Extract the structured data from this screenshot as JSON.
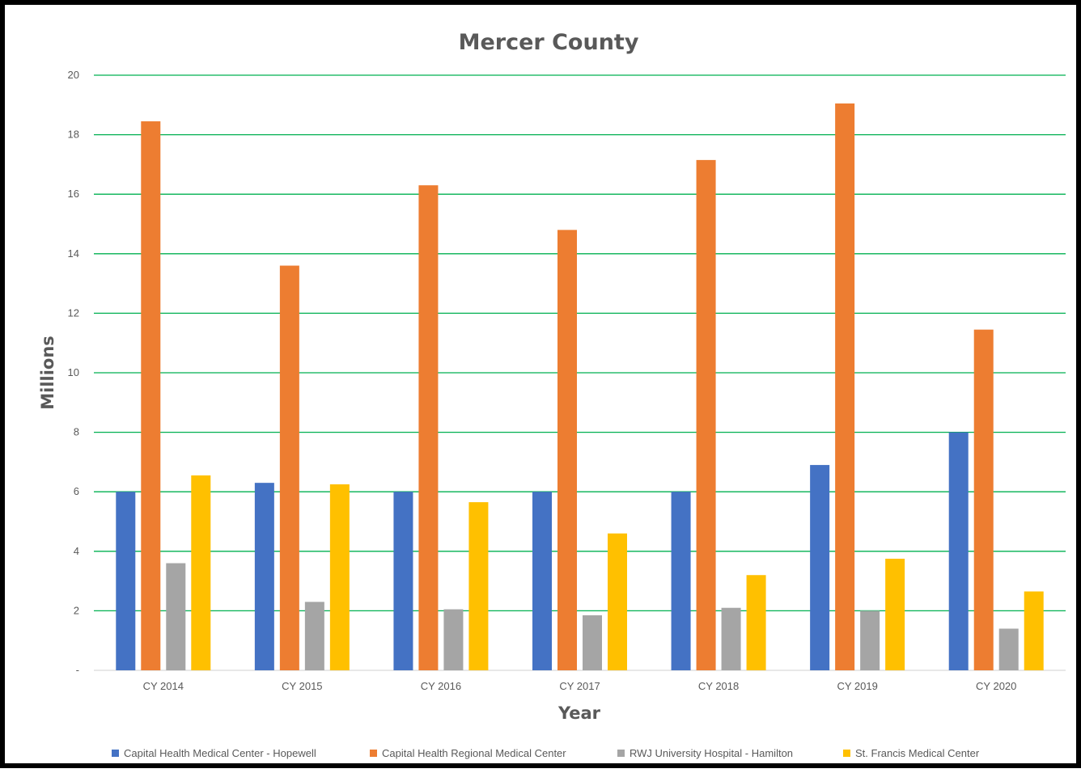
{
  "chart_data": {
    "type": "bar",
    "title": "Mercer County",
    "xlabel": "Year",
    "ylabel": "Millions",
    "ylim": [
      0,
      20
    ],
    "yticks": [
      0,
      2,
      4,
      6,
      8,
      10,
      12,
      14,
      16,
      18,
      20
    ],
    "ytick_labels": [
      "-",
      "2",
      "4",
      "6",
      "8",
      "10",
      "12",
      "14",
      "16",
      "18",
      "20"
    ],
    "grid": true,
    "grid_color": "#00B050",
    "legend_position": "bottom",
    "categories": [
      "CY 2014",
      "CY 2015",
      "CY 2016",
      "CY 2017",
      "CY 2018",
      "CY 2019",
      "CY 2020"
    ],
    "series": [
      {
        "name": "Capital Health Medical Center - Hopewell",
        "color": "#4472C4",
        "values": [
          6.0,
          6.3,
          6.0,
          6.0,
          6.0,
          6.9,
          8.0
        ]
      },
      {
        "name": "Capital Health Regional Medical Center",
        "color": "#ED7D31",
        "values": [
          18.45,
          13.6,
          16.3,
          14.8,
          17.15,
          19.05,
          11.45
        ]
      },
      {
        "name": "RWJ University Hospital - Hamilton",
        "color": "#A5A5A5",
        "values": [
          3.6,
          2.3,
          2.05,
          1.85,
          2.1,
          2.0,
          1.4
        ]
      },
      {
        "name": "St. Francis Medical Center",
        "color": "#FFC000",
        "values": [
          6.55,
          6.25,
          5.65,
          4.6,
          3.2,
          3.75,
          2.65
        ]
      }
    ]
  }
}
